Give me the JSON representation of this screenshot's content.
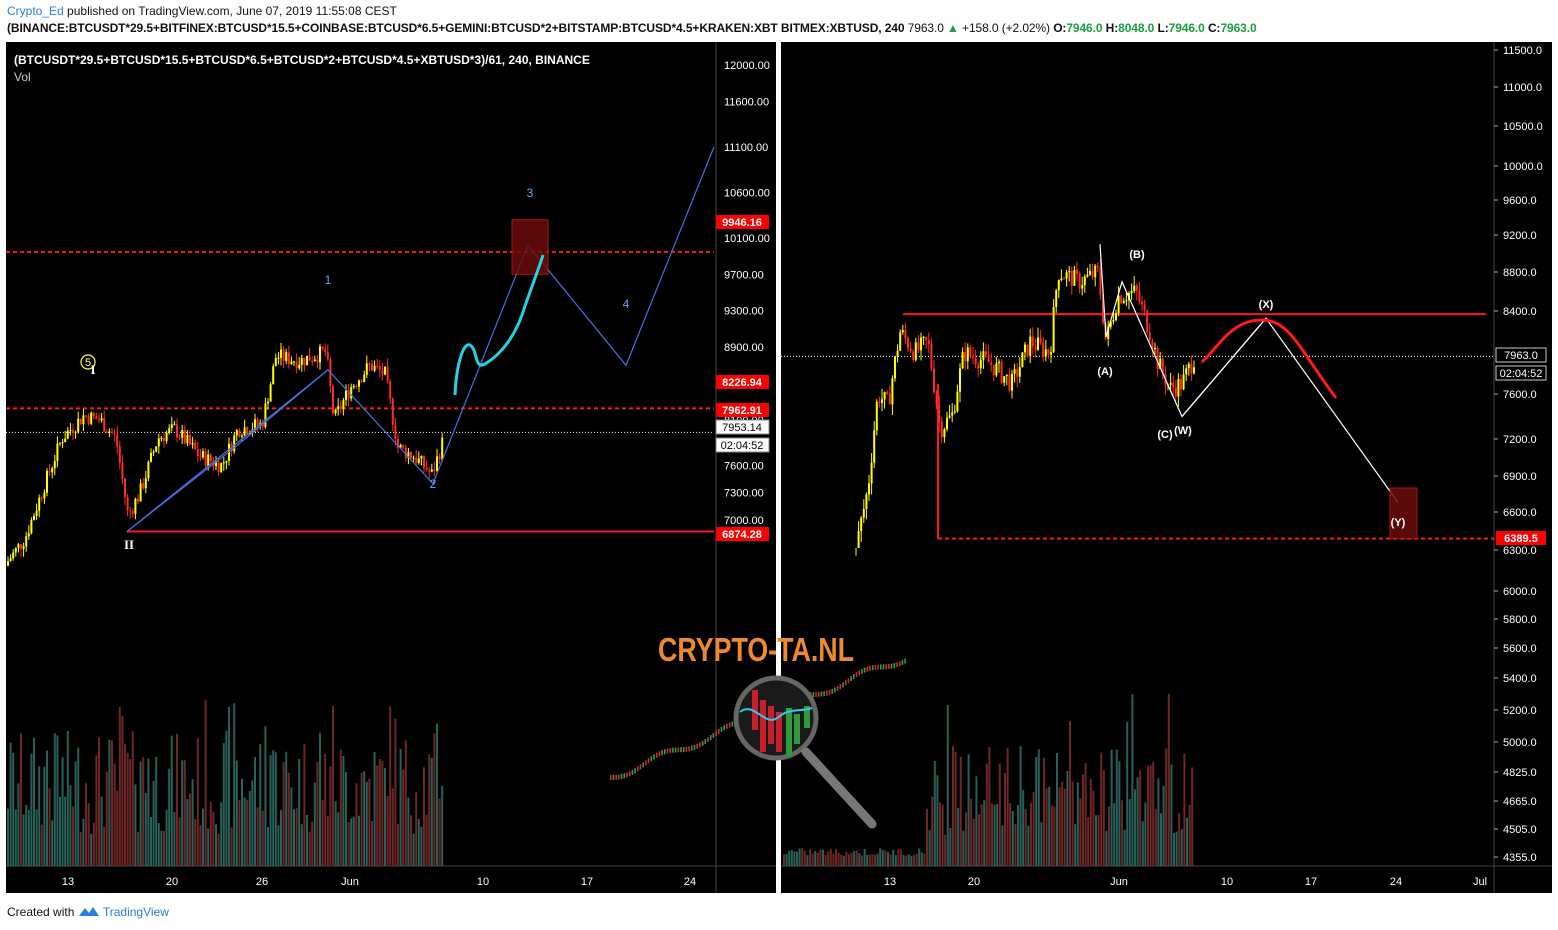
{
  "header": {
    "author": "Crypto_Ed",
    "published_text": "published on TradingView.com, June 07, 2019 11:55:08 CEST",
    "symbol_line": "(BINANCE:BTCUSDT*29.5+BITFINEX:BTCUSD*15.5+COINBASE:BTCUSD*6.5+GEMINI:BTCUSD*2+BITSTAMP:BTCUSD*4.5+KRAKEN:XBT",
    "right_symbol": "BITMEX:XBTUSD, 240",
    "right_last": "7963.0",
    "right_change": "+158.0 (+2.02%)",
    "ohlc": {
      "o_label": "O:",
      "o": "7946.0",
      "h_label": "H:",
      "h": "8048.0",
      "l_label": "L:",
      "l": "7946.0",
      "c_label": "C:",
      "c": "7963.0"
    }
  },
  "footer": {
    "created_with": "Created with",
    "brand": "TradingView"
  },
  "watermark": {
    "text": "CRYPTO-TA.NL"
  },
  "chart_data": [
    {
      "type": "candlestick",
      "title": "(BTCUSDT*29.5+BTCUSD*15.5+BTCUSD*6.5+BTCUSD*2+BTCUSD*4.5+XBTUSD*3)/61, 240, BINANCE",
      "subtitle": "Vol",
      "y_ticks": [
        "12000.00",
        "11600.00",
        "11100.00",
        "10600.00",
        "10100.00",
        "9700.00",
        "9300.00",
        "8900.00",
        "8500.00",
        "8100.00",
        "7600.00",
        "7300.00",
        "7000.00"
      ],
      "x_ticks": [
        "13",
        "20",
        "26",
        "Jun",
        "10",
        "17",
        "24"
      ],
      "price_tags": [
        {
          "label": "9946.16",
          "value": 9946.16,
          "color": "#ff0000"
        },
        {
          "label": "8226.94",
          "value": 8226.94,
          "color": "#ff0000"
        },
        {
          "label": "7962.91",
          "value": 7962.91,
          "color": "#ff0000"
        },
        {
          "label": "7953.14",
          "value": 7953.14,
          "color": "#ffffff"
        },
        {
          "label": "02:04:52",
          "color": "#ffffff"
        },
        {
          "label": "6874.28",
          "value": 6874.28,
          "color": "#ff0000"
        }
      ],
      "horizontal_levels": [
        {
          "value": 9946.16,
          "style": "dashed",
          "color": "#ff1a1a"
        },
        {
          "value": 8226.94,
          "style": "dashed",
          "color": "#ff1a1a"
        },
        {
          "value": 7962.91,
          "style": "dotted",
          "color": "#ffffff"
        },
        {
          "value": 6874.28,
          "style": "solid",
          "color": "#ff1a1a"
        }
      ],
      "wave_labels": [
        "5",
        "I",
        "II",
        "1",
        "2",
        "3",
        "4"
      ],
      "wave_path": [
        {
          "label": "II",
          "price": 6874
        },
        {
          "label": "1",
          "price": 8650
        },
        {
          "label": "2",
          "price": 7400
        },
        {
          "label": "3",
          "price": 10020
        },
        {
          "label": "4",
          "price": 8700
        },
        {
          "label": "",
          "price": 11100
        }
      ],
      "target_box": {
        "label": "3",
        "low": 9700,
        "high": 10300
      },
      "colors": {
        "up": "#ffff00",
        "down": "#ff2a2a",
        "wave": "#4a6fe0",
        "projection": "#22d3e6"
      }
    },
    {
      "type": "candlestick",
      "title": "BITMEX:XBTUSD, 240",
      "y_ticks": [
        "11500.0",
        "11000.0",
        "10500.0",
        "10000.0",
        "9600.0",
        "9200.0",
        "8800.0",
        "8400.0",
        "7600.0",
        "7200.0",
        "6900.0",
        "6600.0",
        "6300.0",
        "6000.0",
        "5800.0",
        "5600.0",
        "5400.0",
        "5200.0",
        "5000.0",
        "4825.0",
        "4665.0",
        "4505.0",
        "4355.0"
      ],
      "x_ticks": [
        "13",
        "20",
        "Jun",
        "10",
        "17",
        "24",
        "Jul"
      ],
      "price_tags": [
        {
          "label": "7963.0",
          "value": 7963.0,
          "color": "#ffffff"
        },
        {
          "label": "02:04:52",
          "color": "#ffffff"
        },
        {
          "label": "6389.5",
          "value": 6389.5,
          "color": "#ff0000"
        }
      ],
      "horizontal_levels": [
        {
          "value": 8370,
          "style": "solid",
          "color": "#ff1a1a"
        },
        {
          "value": 7963.0,
          "style": "dotted",
          "color": "#ffffff"
        },
        {
          "value": 6389.5,
          "style": "dashed",
          "color": "#ff1a1a"
        }
      ],
      "wave_labels": [
        "(A)",
        "(B)",
        "(C)",
        "(W)",
        "(X)",
        "(Y)"
      ],
      "wave_path": [
        {
          "label": "",
          "price": 9100
        },
        {
          "label": "(A)",
          "price": 8150
        },
        {
          "label": "(B)",
          "price": 8700
        },
        {
          "label": "(C)(W)",
          "price": 7400
        },
        {
          "label": "(X)",
          "price": 8330
        },
        {
          "label": "(Y)",
          "price": 6680
        }
      ],
      "target_box": {
        "label": "(Y)",
        "low": 6390,
        "high": 6800
      },
      "colors": {
        "up": "#ffff00",
        "down": "#ff2a2a",
        "wave": "#ffffff",
        "projection": "#ff1a1a"
      }
    }
  ]
}
